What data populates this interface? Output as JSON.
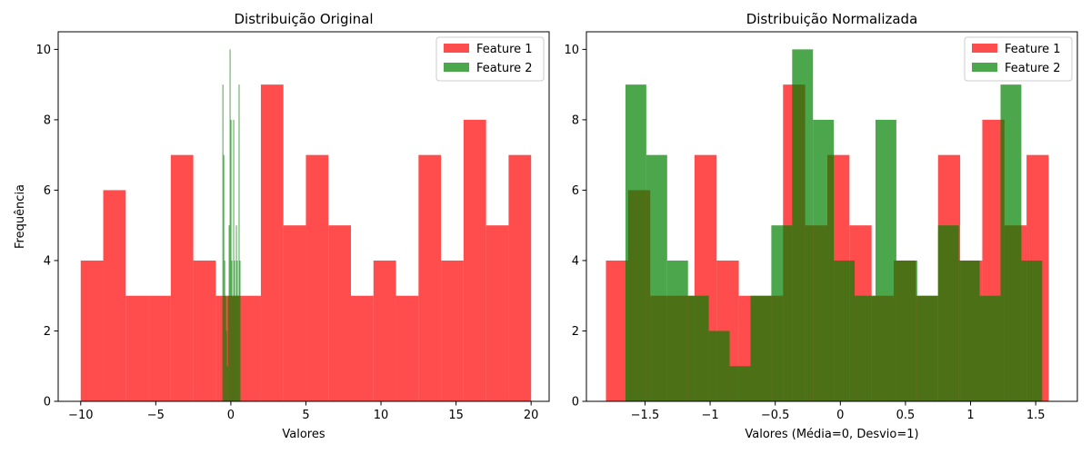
{
  "chart_data": [
    {
      "type": "histogram",
      "title": "Distribuição Original",
      "xlabel": "Valores",
      "ylabel": "Frequência",
      "xlim": [
        -11.5,
        21.2
      ],
      "ylim": [
        0,
        10.5
      ],
      "xticks": [
        -10,
        -5,
        0,
        5,
        10,
        15,
        20
      ],
      "yticks": [
        0,
        2,
        4,
        6,
        8,
        10
      ],
      "legend_position": "upper right",
      "series": [
        {
          "name": "Feature 1",
          "color": "#ff0000",
          "alpha": 0.7,
          "bin_edges": [
            -10.0,
            -8.5,
            -7.0,
            -5.5,
            -4.0,
            -2.5,
            -1.0,
            0.5,
            2.0,
            3.5,
            5.0,
            6.5,
            8.0,
            9.5,
            11.0,
            12.5,
            14.0,
            15.5,
            17.0,
            18.5,
            20.0
          ],
          "counts": [
            4,
            6,
            3,
            3,
            7,
            4,
            3,
            3,
            9,
            5,
            7,
            5,
            3,
            4,
            3,
            7,
            4,
            8,
            5,
            7
          ]
        },
        {
          "name": "Feature 2",
          "color": "#008000",
          "alpha": 0.7,
          "bin_edges": [
            -0.56,
            -0.5,
            -0.44,
            -0.38,
            -0.32,
            -0.26,
            -0.2,
            -0.14,
            -0.08,
            -0.02,
            0.04,
            0.1,
            0.16,
            0.22,
            0.28,
            0.34,
            0.4,
            0.46,
            0.52,
            0.58,
            0.64
          ],
          "counts": [
            9,
            7,
            4,
            3,
            2,
            1,
            3,
            5,
            10,
            8,
            4,
            3,
            8,
            4,
            3,
            5,
            4,
            3,
            9,
            4
          ]
        }
      ]
    },
    {
      "type": "histogram",
      "title": "Distribuição Normalizada",
      "xlabel": "Valores (Média=0, Desvio=1)",
      "ylabel": "",
      "xlim": [
        -1.95,
        1.82
      ],
      "ylim": [
        0,
        10.5
      ],
      "xticks": [
        -1.5,
        -1.0,
        -0.5,
        0.0,
        0.5,
        1.0,
        1.5
      ],
      "yticks": [
        0,
        2,
        4,
        6,
        8,
        10
      ],
      "legend_position": "upper right",
      "series": [
        {
          "name": "Feature 1",
          "color": "#ff0000",
          "alpha": 0.7,
          "bin_edges": [
            -1.8,
            -1.63,
            -1.46,
            -1.29,
            -1.12,
            -0.95,
            -0.78,
            -0.61,
            -0.44,
            -0.27,
            -0.1,
            0.07,
            0.24,
            0.41,
            0.58,
            0.75,
            0.92,
            1.09,
            1.26,
            1.43,
            1.6
          ],
          "counts": [
            4,
            6,
            3,
            3,
            7,
            4,
            3,
            3,
            9,
            5,
            7,
            5,
            3,
            4,
            3,
            7,
            4,
            8,
            5,
            7
          ]
        },
        {
          "name": "Feature 2",
          "color": "#008000",
          "alpha": 0.7,
          "bin_edges": [
            -1.65,
            -1.49,
            -1.33,
            -1.17,
            -1.01,
            -0.85,
            -0.69,
            -0.53,
            -0.37,
            -0.21,
            -0.05,
            0.11,
            0.27,
            0.43,
            0.59,
            0.75,
            0.91,
            1.07,
            1.23,
            1.39,
            1.55
          ],
          "counts": [
            9,
            7,
            4,
            3,
            2,
            1,
            3,
            5,
            10,
            8,
            4,
            3,
            8,
            4,
            3,
            5,
            4,
            3,
            9,
            4
          ]
        }
      ]
    }
  ]
}
